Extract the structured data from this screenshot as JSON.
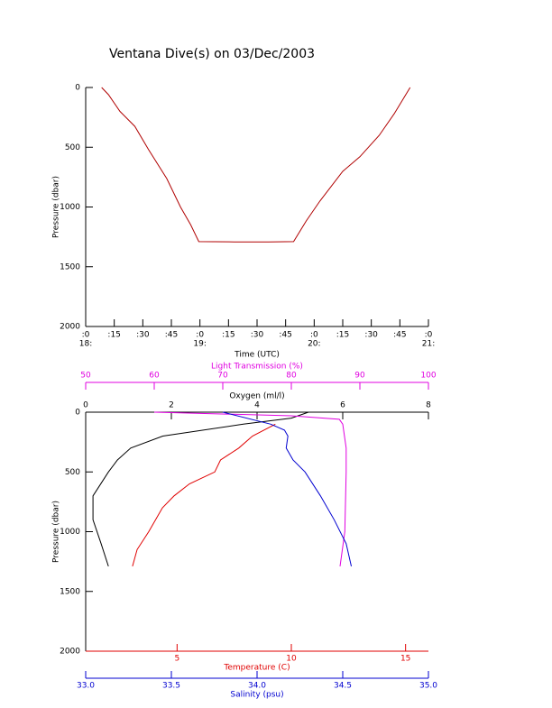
{
  "chart_data": [
    {
      "type": "line",
      "title": "Ventana Dive(s) on 03/Dec/2003",
      "xlabel": "Time (UTC)",
      "ylabel": "Pressure (dbar)",
      "xlim": [
        18,
        21
      ],
      "ylim": [
        0,
        2000
      ],
      "y_reversed": true,
      "xticks": [
        {
          "value": 18,
          "label": ":0"
        },
        {
          "value": 18.25,
          "label": ":15"
        },
        {
          "value": 18.5,
          "label": ":30"
        },
        {
          "value": 18.75,
          "label": ":45"
        },
        {
          "value": 19,
          "label": ":0"
        },
        {
          "value": 19.25,
          "label": ":15"
        },
        {
          "value": 19.5,
          "label": ":30"
        },
        {
          "value": 19.75,
          "label": ":45"
        },
        {
          "value": 20,
          "label": ":0"
        },
        {
          "value": 20.25,
          "label": ":15"
        },
        {
          "value": 20.5,
          "label": ":30"
        },
        {
          "value": 20.75,
          "label": ":45"
        },
        {
          "value": 21,
          "label": ":0"
        }
      ],
      "x_hour_labels": [
        {
          "value": 18,
          "label": "18:"
        },
        {
          "value": 19,
          "label": "19:"
        },
        {
          "value": 20,
          "label": "20:"
        },
        {
          "value": 21,
          "label": "21:"
        }
      ],
      "yticks": [
        0,
        500,
        1000,
        1500,
        2000
      ],
      "series": [
        {
          "color": "#b00000",
          "x": [
            18.14,
            18.2,
            18.3,
            18.43,
            18.55,
            18.71,
            18.83,
            18.92,
            18.99,
            19.3,
            19.6,
            19.82,
            19.93,
            20.05,
            20.25,
            20.4,
            20.57,
            20.7,
            20.84
          ],
          "values": [
            0,
            60,
            200,
            325,
            520,
            762,
            1000,
            1150,
            1290,
            1292,
            1293,
            1290,
            1117,
            950,
            702,
            580,
            400,
            220,
            0
          ]
        }
      ]
    },
    {
      "type": "line",
      "ylabel": "Pressure (dbar)",
      "ylim": [
        0,
        2000
      ],
      "y_reversed": true,
      "yticks": [
        0,
        500,
        1000,
        1500,
        2000
      ],
      "x_axes": [
        {
          "label": "Oxygen (ml/l)",
          "color": "#000000",
          "position": "top",
          "xlim": [
            0,
            8
          ],
          "xticks": [
            0,
            2,
            4,
            6,
            8
          ]
        },
        {
          "label": "Light Transmission (%)",
          "color": "#e000e0",
          "position": "top",
          "xlim": [
            50,
            100
          ],
          "xticks": [
            50,
            60,
            70,
            80,
            90,
            100
          ]
        },
        {
          "label": "Temperature (C)",
          "color": "#e00000",
          "position": "bottom",
          "xlim": [
            1,
            16
          ],
          "xticks": [
            5,
            10,
            15
          ]
        },
        {
          "label": "Salinity (psu)",
          "color": "#0000d0",
          "position": "bottom",
          "xlim": [
            33,
            35
          ],
          "xticks": [
            {
              "value": 33,
              "label": "33.0"
            },
            {
              "value": 33.5,
              "label": "33.5"
            },
            {
              "value": 34,
              "label": "34.0"
            },
            {
              "value": 34.5,
              "label": "34.5"
            },
            {
              "value": 35,
              "label": "35.0"
            }
          ]
        }
      ],
      "series": [
        {
          "x_axis": 0,
          "color": "#000000",
          "x": [
            5.2,
            4.8,
            3.68,
            1.8,
            1.05,
            0.74,
            0.53,
            0.17,
            0.17,
            0.36,
            0.53
          ],
          "values": [
            0,
            50,
            100,
            200,
            300,
            400,
            500,
            700,
            900,
            1100,
            1290
          ]
        },
        {
          "x_axis": 1,
          "color": "#e000e0",
          "x": [
            60,
            80,
            87,
            87.5,
            88,
            88,
            87.8,
            87.1
          ],
          "values": [
            0,
            30,
            60,
            100,
            300,
            500,
            1000,
            1290
          ]
        },
        {
          "x_axis": 2,
          "color": "#e00000",
          "x": [
            9.3,
            8.3,
            7.7,
            6.9,
            6.65,
            5.54,
            4.87,
            4.36,
            3.76,
            3.25,
            3.05
          ],
          "values": [
            100,
            200,
            300,
            400,
            500,
            600,
            700,
            800,
            1000,
            1150,
            1290
          ]
        },
        {
          "x_axis": 3,
          "color": "#0000d0",
          "x": [
            33.8,
            34.08,
            34.16,
            34.18,
            34.17,
            34.21,
            34.28,
            34.37,
            34.45,
            34.52,
            34.55
          ],
          "values": [
            0,
            100,
            150,
            200,
            300,
            400,
            500,
            700,
            900,
            1100,
            1290
          ]
        }
      ]
    }
  ]
}
